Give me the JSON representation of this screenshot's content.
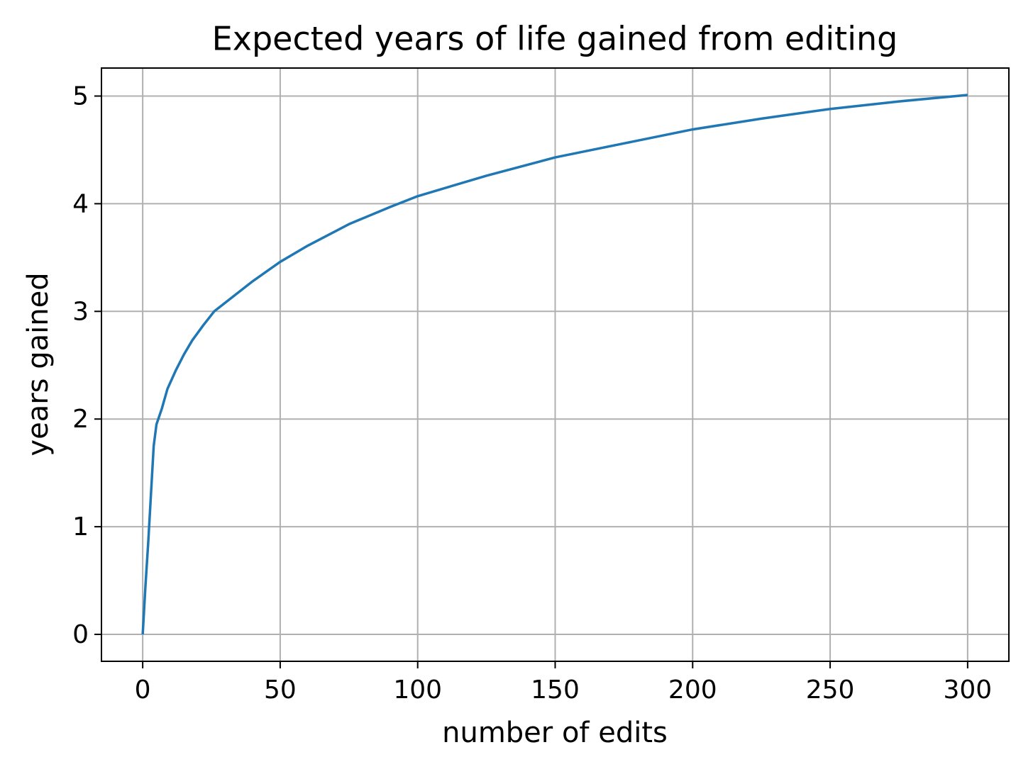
{
  "chart_data": {
    "type": "line",
    "title": "Expected years of life gained from editing",
    "x_label": "number of edits",
    "y_label": "years gained",
    "x": [
      0,
      1,
      2,
      3,
      4,
      5,
      7,
      9,
      12,
      15,
      18,
      22,
      26,
      30,
      40,
      50,
      60,
      75,
      90,
      100,
      125,
      150,
      175,
      200,
      225,
      250,
      275,
      300
    ],
    "series": [
      {
        "color": "#1f77b4",
        "values": [
          0,
          0.45,
          0.85,
          1.3,
          1.75,
          1.95,
          2.1,
          2.28,
          2.45,
          2.6,
          2.73,
          2.87,
          3.0,
          3.08,
          3.28,
          3.46,
          3.61,
          3.81,
          3.97,
          4.07,
          4.26,
          4.43,
          4.56,
          4.69,
          4.79,
          4.88,
          4.95,
          5.01
        ]
      }
    ],
    "xlim": [
      -15,
      315
    ],
    "ylim": [
      -0.25,
      5.26
    ],
    "xticks": [
      0,
      50,
      100,
      150,
      200,
      250,
      300
    ],
    "yticks": [
      0,
      1,
      2,
      3,
      4,
      5
    ],
    "grid": true
  }
}
